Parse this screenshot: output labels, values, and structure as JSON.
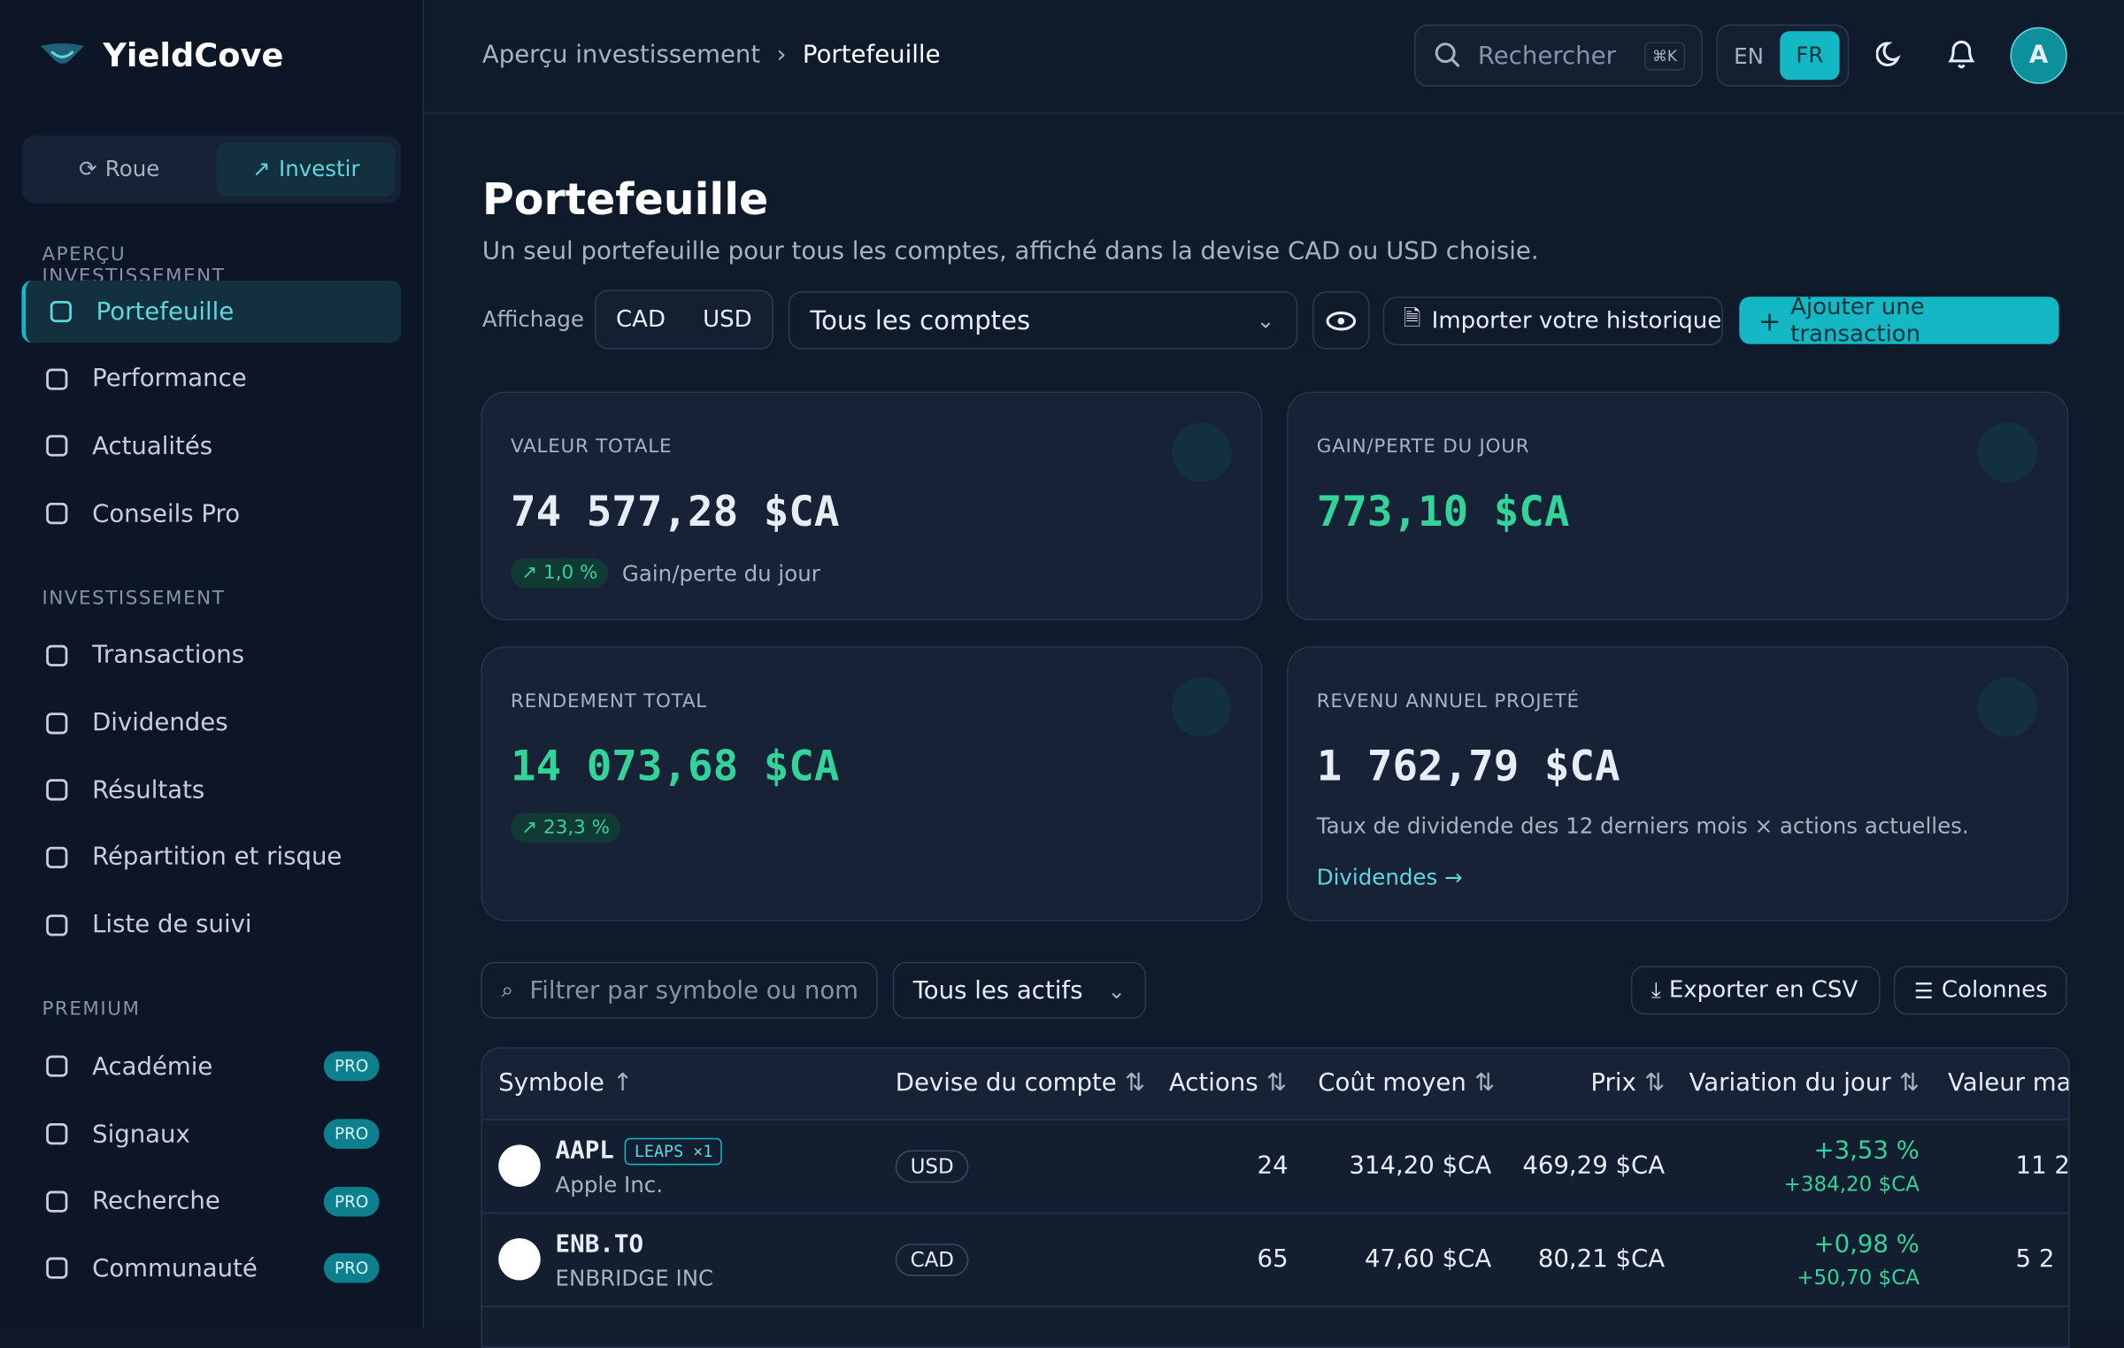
{
  "brand": "YieldCove",
  "mode_toggle": [
    "Roue",
    "Investir"
  ],
  "nav": [
    {
      "title": "APERÇU INVESTISSEMENT",
      "items": [
        {
          "label": "Portefeuille"
        },
        {
          "label": "Performance"
        },
        {
          "label": "Actualités"
        },
        {
          "label": "Conseils Pro"
        }
      ]
    },
    {
      "title": "INVESTISSEMENT",
      "items": [
        {
          "label": "Transactions"
        },
        {
          "label": "Dividendes"
        },
        {
          "label": "Résultats"
        },
        {
          "label": "Répartition et risque"
        },
        {
          "label": "Liste de suivi"
        }
      ]
    },
    {
      "title": "PREMIUM",
      "items": [
        {
          "label": "Académie",
          "badge": "PRO"
        },
        {
          "label": "Signaux",
          "badge": "PRO"
        },
        {
          "label": "Recherche",
          "badge": "PRO"
        },
        {
          "label": "Communauté",
          "badge": "PRO"
        }
      ]
    }
  ],
  "breadcrumb": [
    "Aperçu investissement",
    "Portefeuille"
  ],
  "search": {
    "placeholder": "Rechercher",
    "shortcut": "⌘K"
  },
  "languages": [
    "EN",
    "FR"
  ],
  "avatar": "A",
  "page": {
    "title": "Portefeuille",
    "subtitle": "Un seul portefeuille pour tous les comptes, affiché dans la devise CAD ou USD choisie."
  },
  "toolbar": {
    "display_label": "Affichage",
    "currencies": [
      "CAD",
      "USD"
    ],
    "account_select": "Tous les comptes",
    "import": "Importer votre historique",
    "add": "Ajouter une transaction"
  },
  "cards": [
    {
      "label": "VALEUR TOTALE",
      "value": "74 577,28 $CA",
      "badge": "1,0 %",
      "note": "Gain/perte du jour"
    },
    {
      "label": "GAIN/PERTE DU JOUR",
      "value": "773,10 $CA"
    },
    {
      "label": "RENDEMENT TOTAL",
      "value": "14 073,68 $CA",
      "badge": "23,3 %"
    },
    {
      "label": "REVENU ANNUEL PROJETÉ",
      "value": "1 762,79 $CA",
      "note": "Taux de dividende des 12 derniers mois × actions actuelles.",
      "link": "Dividendes →"
    }
  ],
  "table_toolbar": {
    "filter": "Filtrer par symbole ou nom",
    "asset_select": "Tous les actifs",
    "export": "Exporter en CSV",
    "columns": "Colonnes"
  },
  "table": {
    "columns": [
      "Symbole",
      "Devise du compte",
      "Actions",
      "Coût moyen",
      "Prix",
      "Variation du jour",
      "Valeur ma"
    ],
    "rows": [
      {
        "symbol": "AAPL",
        "tag": "LEAPS ×1",
        "name": "Apple Inc.",
        "currency": "USD",
        "shares": "24",
        "avg_cost": "314,20 $CA",
        "price": "469,29 $CA",
        "change_pct": "+3,53 %",
        "change_abs": "+384,20 $CA",
        "value": "11 2"
      },
      {
        "symbol": "ENB.TO",
        "name": "ENBRIDGE INC",
        "currency": "CAD",
        "shares": "65",
        "avg_cost": "47,60 $CA",
        "price": "80,21 $CA",
        "change_pct": "+0,98 %",
        "change_abs": "+50,70 $CA",
        "value": "5 2"
      }
    ]
  }
}
